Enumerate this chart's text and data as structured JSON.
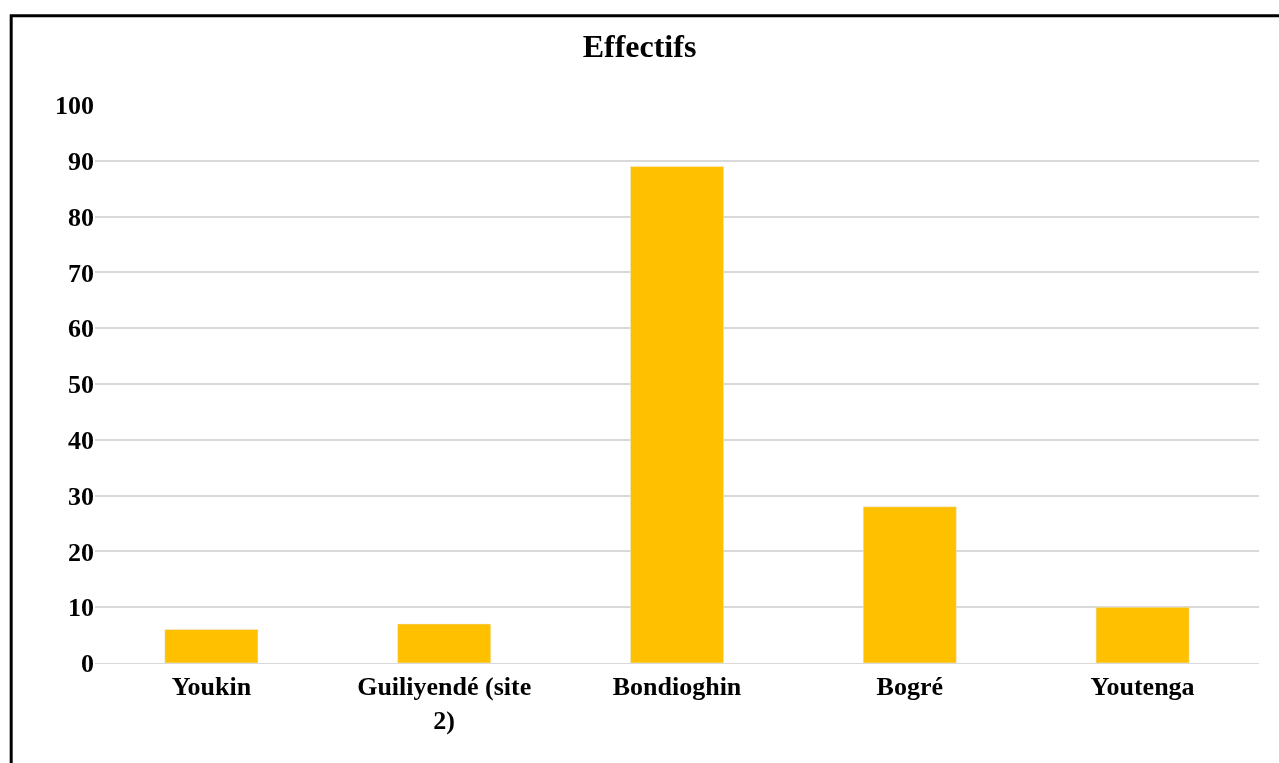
{
  "chart_data": {
    "type": "bar",
    "title": "Effectifs",
    "categories": [
      "Youkin",
      "Guiliyendé (site 2)",
      "Bondioghin",
      "Bogré",
      "Youtenga"
    ],
    "values": [
      6,
      7,
      89,
      28,
      10
    ],
    "color": "#ffc000",
    "ylim": [
      0,
      100
    ],
    "yticks": [
      0,
      10,
      20,
      30,
      40,
      50,
      60,
      70,
      80,
      90,
      100
    ],
    "grid": "y"
  }
}
